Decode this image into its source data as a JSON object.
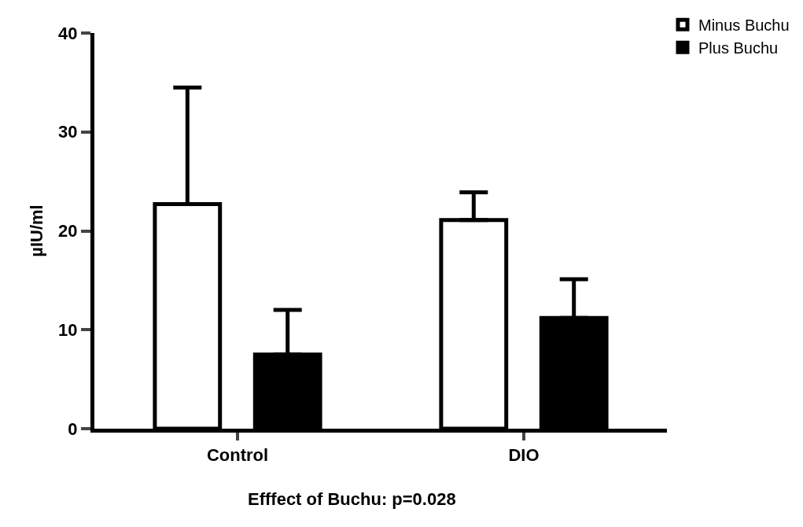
{
  "chart_data": {
    "type": "bar",
    "ylabel": "µIU/ml",
    "categories": [
      "Control",
      "DIO"
    ],
    "series": [
      {
        "name": "Minus Buchu",
        "color": "#ffffff",
        "values": [
          22.7,
          21.1
        ],
        "errors": [
          [
            22.7,
            34.5
          ],
          [
            21.1,
            23.9
          ]
        ]
      },
      {
        "name": "Plus Buchu",
        "color": "#000000",
        "values": [
          7.5,
          11.2
        ],
        "errors": [
          [
            7.5,
            12.0
          ],
          [
            11.2,
            15.1
          ]
        ]
      }
    ],
    "ylim": [
      0,
      40
    ],
    "yticks": [
      0,
      10,
      20,
      30,
      40
    ],
    "legend": "top right",
    "annotations": [
      "Efffect of Buchu: p=0.028"
    ]
  }
}
